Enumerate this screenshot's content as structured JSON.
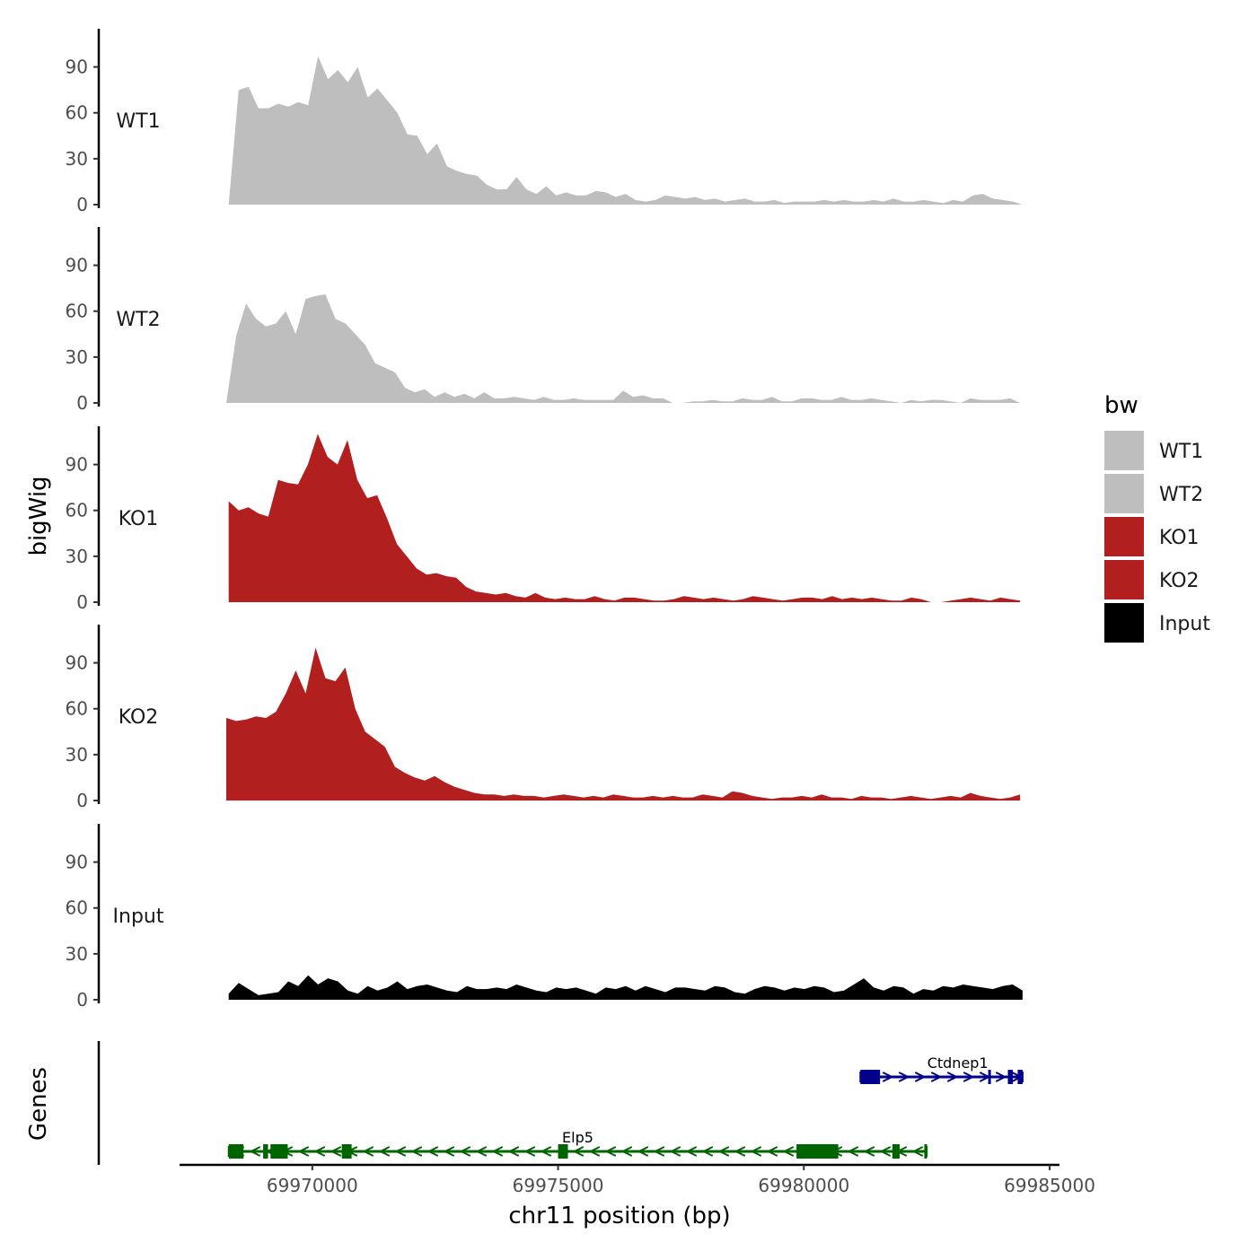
{
  "chart_data": {
    "type": "area",
    "title": "",
    "xlabel": "chr11 position (bp)",
    "ylabel": "bigWig",
    "genes_axis_label": "Genes",
    "xlim": [
      69967300,
      69985200
    ],
    "x_ticks": [
      69970000,
      69975000,
      69980000,
      69985000
    ],
    "x_tick_labels": [
      "69970000",
      "69975000",
      "69980000",
      "69985000"
    ],
    "ylim": [
      0,
      115
    ],
    "y_ticks": [
      0,
      30,
      60,
      90
    ],
    "y_tick_labels": [
      "0",
      "30",
      "60",
      "90"
    ],
    "legend": {
      "title": "bw",
      "position": "right",
      "entries": [
        {
          "name": "WT1",
          "color": "#bebebe"
        },
        {
          "name": "WT2",
          "color": "#bebebe"
        },
        {
          "name": "KO1",
          "color": "#b21f1f"
        },
        {
          "name": "KO2",
          "color": "#b21f1f"
        },
        {
          "name": "Input",
          "color": "#000000"
        }
      ]
    },
    "series": [
      {
        "name": "WT1",
        "color": "#bebebe",
        "x_start": 69968300,
        "x_end": 69984450,
        "values": [
          0,
          75,
          77,
          63,
          63,
          66,
          64,
          67,
          65,
          97,
          82,
          88,
          80,
          90,
          70,
          76,
          68,
          60,
          46,
          45,
          33,
          40,
          25,
          22,
          20,
          19,
          13,
          10,
          10,
          18,
          10,
          7,
          12,
          6,
          8,
          6,
          6,
          9,
          8,
          5,
          7,
          3,
          2,
          3,
          6,
          5,
          4,
          5,
          3,
          4,
          2,
          3,
          4,
          2,
          2,
          3,
          1,
          2,
          2,
          2,
          3,
          2,
          3,
          2,
          2,
          3,
          2,
          4,
          2,
          2,
          3,
          2,
          1,
          3,
          2,
          6,
          7,
          4,
          3,
          2,
          0
        ]
      },
      {
        "name": "WT2",
        "color": "#bebebe",
        "x_start": 69968250,
        "x_end": 69984400,
        "values": [
          0,
          44,
          65,
          55,
          50,
          52,
          60,
          45,
          68,
          70,
          71,
          55,
          52,
          45,
          38,
          26,
          23,
          20,
          10,
          7,
          9,
          4,
          7,
          4,
          6,
          3,
          7,
          3,
          3,
          4,
          3,
          2,
          4,
          2,
          2,
          3,
          2,
          2,
          2,
          2,
          8,
          4,
          5,
          3,
          3,
          0,
          0,
          1,
          1,
          2,
          1,
          1,
          3,
          2,
          2,
          4,
          1,
          1,
          3,
          3,
          2,
          2,
          4,
          2,
          2,
          3,
          2,
          1,
          0,
          2,
          1,
          2,
          2,
          1,
          0,
          3,
          2,
          2,
          2,
          3,
          0
        ]
      },
      {
        "name": "KO1",
        "color": "#b21f1f",
        "x_start": 69968300,
        "x_end": 69984400,
        "values": [
          66,
          60,
          62,
          58,
          56,
          80,
          78,
          77,
          90,
          110,
          95,
          90,
          106,
          80,
          68,
          70,
          55,
          38,
          30,
          22,
          18,
          19,
          17,
          16,
          10,
          7,
          6,
          5,
          6,
          4,
          3,
          6,
          3,
          2,
          3,
          2,
          2,
          4,
          2,
          1,
          3,
          3,
          2,
          1,
          1,
          2,
          4,
          3,
          2,
          3,
          2,
          1,
          2,
          4,
          3,
          2,
          1,
          2,
          3,
          3,
          2,
          4,
          2,
          3,
          2,
          3,
          2,
          1,
          1,
          3,
          2,
          0,
          0,
          1,
          2,
          3,
          2,
          1,
          3,
          2,
          1
        ]
      },
      {
        "name": "KO2",
        "color": "#b21f1f",
        "x_start": 69968250,
        "x_end": 69984400,
        "values": [
          54,
          52,
          53,
          55,
          54,
          58,
          70,
          85,
          70,
          100,
          80,
          78,
          87,
          60,
          45,
          40,
          35,
          22,
          18,
          15,
          13,
          16,
          12,
          9,
          7,
          5,
          4,
          4,
          3,
          4,
          3,
          3,
          2,
          3,
          4,
          3,
          2,
          3,
          2,
          4,
          3,
          2,
          2,
          3,
          2,
          3,
          2,
          2,
          4,
          3,
          2,
          6,
          5,
          3,
          2,
          1,
          2,
          2,
          3,
          2,
          4,
          2,
          2,
          1,
          3,
          2,
          2,
          1,
          2,
          3,
          2,
          1,
          2,
          3,
          2,
          5,
          3,
          2,
          1,
          2,
          4
        ]
      },
      {
        "name": "Input",
        "color": "#000000",
        "x_start": 69968300,
        "x_end": 69984450,
        "values": [
          4,
          11,
          7,
          3,
          4,
          5,
          12,
          9,
          16,
          10,
          14,
          12,
          6,
          4,
          9,
          6,
          8,
          12,
          7,
          9,
          10,
          8,
          6,
          5,
          9,
          7,
          7,
          8,
          7,
          10,
          8,
          6,
          5,
          8,
          7,
          8,
          6,
          4,
          8,
          7,
          9,
          6,
          9,
          7,
          5,
          8,
          8,
          7,
          6,
          9,
          8,
          5,
          4,
          7,
          9,
          8,
          6,
          8,
          7,
          9,
          8,
          5,
          6,
          10,
          14,
          8,
          6,
          9,
          8,
          4,
          7,
          6,
          9,
          8,
          10,
          9,
          8,
          7,
          9,
          10,
          6
        ]
      }
    ],
    "genes": [
      {
        "name": "Ctdnep1",
        "strand": "+",
        "color": "#00008b",
        "start": 69981150,
        "end": 69984450,
        "exons": [
          [
            69981150,
            69981550
          ],
          [
            69983750,
            69983800
          ],
          [
            69984150,
            69984250
          ],
          [
            69984350,
            69984450
          ]
        ]
      },
      {
        "name": "Elp5",
        "strand": "-",
        "color": "#006400",
        "start": 69968300,
        "end": 69982500,
        "exons": [
          [
            69968300,
            69968600
          ],
          [
            69969000,
            69969100
          ],
          [
            69969150,
            69969500
          ],
          [
            69970600,
            69970800
          ],
          [
            69975000,
            69975200
          ],
          [
            69979850,
            69980700
          ],
          [
            69981800,
            69981950
          ],
          [
            69982450,
            69982500
          ]
        ]
      }
    ]
  }
}
